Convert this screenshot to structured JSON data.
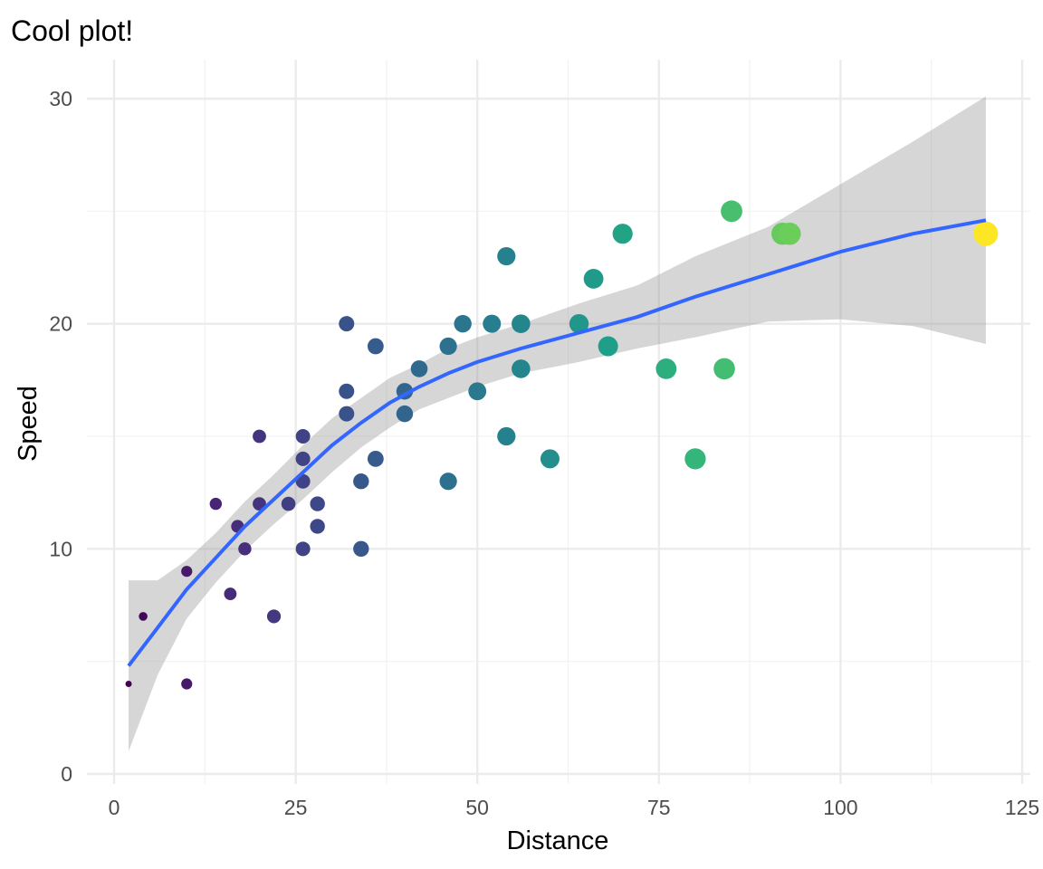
{
  "chart_data": {
    "type": "scatter",
    "title": "Cool plot!",
    "xlabel": "Distance",
    "ylabel": "Speed",
    "xlim": [
      0,
      125
    ],
    "ylim": [
      0,
      30
    ],
    "x_ticks": [
      0,
      25,
      50,
      75,
      100,
      125
    ],
    "y_ticks": [
      0,
      10,
      20,
      30
    ],
    "grid": true,
    "legend": "none",
    "color_scale": "viridis",
    "color_mapped_to": "Distance",
    "size_mapped_to": "Distance",
    "series": [
      {
        "x": [
          2,
          4,
          10,
          10,
          14,
          16,
          17,
          18,
          20,
          20,
          22,
          24,
          26,
          26,
          26,
          26,
          28,
          28,
          32,
          32,
          32,
          34,
          34,
          36,
          36,
          40,
          40,
          42,
          46,
          46,
          48,
          50,
          52,
          54,
          54,
          56,
          56,
          60,
          64,
          66,
          68,
          70,
          76,
          80,
          84,
          85,
          92,
          93,
          120
        ],
        "y": [
          4,
          7,
          4,
          9,
          12,
          8,
          11,
          10,
          12,
          15,
          7,
          12,
          10,
          13,
          14,
          15,
          11,
          12,
          16,
          17,
          20,
          10,
          13,
          14,
          19,
          16,
          17,
          18,
          13,
          19,
          20,
          17,
          20,
          15,
          23,
          18,
          20,
          14,
          20,
          22,
          19,
          24,
          18,
          14,
          18,
          25,
          24,
          24,
          24
        ]
      }
    ],
    "smooth": {
      "method": "loess",
      "color": "#3366FF",
      "band_color": "#999999",
      "x": [
        2,
        6,
        10,
        14,
        18,
        22,
        26,
        30,
        34,
        38,
        42,
        46,
        50,
        56,
        64,
        72,
        80,
        90,
        100,
        110,
        120
      ],
      "y": [
        4.8,
        6.5,
        8.2,
        9.6,
        11.0,
        12.2,
        13.4,
        14.6,
        15.6,
        16.5,
        17.2,
        17.8,
        18.3,
        18.9,
        19.6,
        20.3,
        21.2,
        22.2,
        23.2,
        24.0,
        24.6
      ],
      "ymin": [
        1.0,
        4.4,
        6.9,
        8.5,
        9.9,
        11.1,
        12.2,
        13.4,
        14.5,
        15.4,
        16.2,
        16.7,
        17.2,
        17.8,
        18.3,
        18.9,
        19.4,
        20.1,
        20.2,
        19.9,
        19.1
      ],
      "ymax": [
        8.6,
        8.6,
        9.5,
        10.7,
        12.1,
        13.3,
        14.6,
        15.8,
        16.7,
        17.6,
        18.2,
        18.9,
        19.4,
        20.0,
        20.9,
        21.7,
        23.0,
        24.3,
        26.2,
        28.1,
        30.1
      ]
    }
  }
}
